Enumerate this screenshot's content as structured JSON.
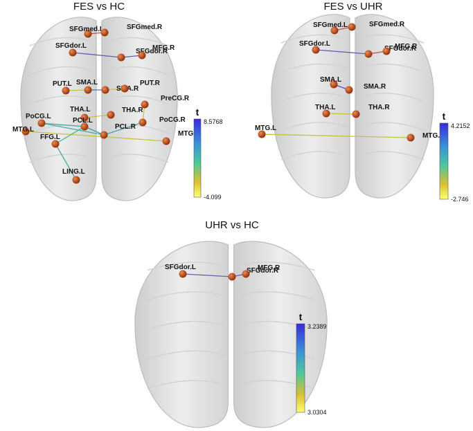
{
  "panels": [
    {
      "title": "FES vs HC",
      "nodes": [
        "SFGmed.L",
        "SFGmed.R",
        "SFGdor.L",
        "SFGdor.R",
        "MFG.R",
        "PUT.L",
        "SMA.L",
        "SMA.R",
        "PUT.R",
        "PreCG.R",
        "THA.L",
        "THA.R",
        "PoCG.L",
        "PCL.L",
        "PCL.R",
        "PoCG.R",
        "MTG.L",
        "MTG.R",
        "FFG.L",
        "LING.L"
      ],
      "colorbar": {
        "label": "t",
        "max": 8.5768,
        "min": -4.099
      }
    },
    {
      "title": "FES vs UHR",
      "nodes": [
        "SFGmed.L",
        "SFGmed.R",
        "SFGdor.L",
        "SFGdor.R",
        "MFG.R",
        "SMA.L",
        "SMA.R",
        "THA.L",
        "THA.R",
        "MTG.L",
        "MTG.R"
      ],
      "colorbar": {
        "label": "t",
        "max": 4.2152,
        "min": -2.746
      }
    },
    {
      "title": "UHR vs HC",
      "nodes": [
        "SFGdor.L",
        "SFGdor.R",
        "MFG.R"
      ],
      "colorbar": {
        "label": "t",
        "max": 3.2389,
        "min": 3.0304
      }
    }
  ]
}
